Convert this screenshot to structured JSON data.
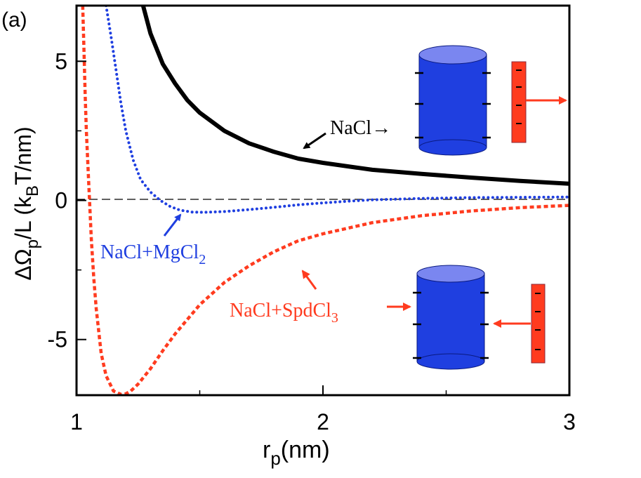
{
  "chart_data": {
    "type": "line",
    "panel_label": "(a)",
    "xlabel": "r",
    "xlabel_sub": "p",
    "xlabel_unit": "(nm)",
    "ylabel_prefix": "ΔΩ",
    "ylabel_sub": "p",
    "ylabel_mid": "/L (k",
    "ylabel_sub2": "B",
    "ylabel_suffix": "T/nm)",
    "xlim": [
      1,
      3
    ],
    "ylim": [
      -7,
      7
    ],
    "x_ticks": [
      {
        "value": 1,
        "label": "1"
      },
      {
        "value": 2,
        "label": "2"
      },
      {
        "value": 3,
        "label": "3"
      }
    ],
    "x_minor_ticks": [
      1.5,
      2.5
    ],
    "y_ticks": [
      {
        "value": 5,
        "label": "5"
      },
      {
        "value": 0,
        "label": "0"
      },
      {
        "value": -5,
        "label": "-5"
      }
    ],
    "y_minor_ticks": [
      2.5,
      -2.5
    ],
    "zero_line": true,
    "series": [
      {
        "name": "NaCl",
        "color": "#000000",
        "style": "solid",
        "x": [
          1.27,
          1.3,
          1.35,
          1.4,
          1.45,
          1.5,
          1.6,
          1.7,
          1.8,
          1.9,
          2.0,
          2.2,
          2.4,
          2.6,
          2.8,
          3.0
        ],
        "y": [
          7.0,
          6.0,
          4.9,
          4.2,
          3.6,
          3.15,
          2.5,
          2.05,
          1.75,
          1.5,
          1.35,
          1.1,
          0.95,
          0.82,
          0.7,
          0.6
        ]
      },
      {
        "name": "NaCl+MgCl2",
        "color": "#1f3fe0",
        "style": "dotted",
        "x": [
          1.12,
          1.14,
          1.16,
          1.18,
          1.2,
          1.23,
          1.26,
          1.3,
          1.34,
          1.38,
          1.42,
          1.47,
          1.52,
          1.6,
          1.7,
          1.8,
          1.9,
          2.0,
          2.1,
          2.2,
          2.4,
          2.6,
          2.8,
          3.0
        ],
        "y": [
          7.0,
          5.9,
          4.7,
          3.5,
          2.5,
          1.45,
          0.75,
          0.3,
          0.0,
          -0.22,
          -0.35,
          -0.42,
          -0.43,
          -0.4,
          -0.33,
          -0.25,
          -0.16,
          -0.09,
          -0.03,
          0.02,
          0.07,
          0.1,
          0.11,
          0.12
        ]
      },
      {
        "name": "NaCl+SpdCl3",
        "color": "#ff3b1f",
        "style": "dashed",
        "x": [
          1.025,
          1.03,
          1.035,
          1.04,
          1.05,
          1.06,
          1.07,
          1.08,
          1.1,
          1.12,
          1.15,
          1.18,
          1.2,
          1.22,
          1.25,
          1.3,
          1.35,
          1.4,
          1.5,
          1.6,
          1.7,
          1.8,
          1.9,
          2.0,
          2.2,
          2.4,
          2.6,
          2.8,
          3.0
        ],
        "y": [
          7.0,
          5.5,
          3.8,
          2.5,
          0.5,
          -1.4,
          -2.8,
          -3.9,
          -5.5,
          -6.3,
          -6.85,
          -6.97,
          -6.95,
          -6.85,
          -6.6,
          -6.05,
          -5.4,
          -4.8,
          -3.75,
          -2.95,
          -2.35,
          -1.85,
          -1.45,
          -1.2,
          -0.8,
          -0.55,
          -0.38,
          -0.26,
          -0.18
        ]
      }
    ],
    "annotations": [
      {
        "series": "NaCl",
        "text": "NaCl",
        "arrow": "→",
        "color": "#000000"
      },
      {
        "series": "NaCl+MgCl2",
        "text": "NaCl+MgCl",
        "sub": "2",
        "color": "#1f3fe0"
      },
      {
        "series": "NaCl+SpdCl3",
        "text": "NaCl+SpdCl",
        "sub": "3",
        "color": "#ff3b1f"
      }
    ],
    "insets": {
      "cylinder_color": "#1f3fe0",
      "rod_color": "#ff3b1f",
      "top_arrow_direction": "away",
      "bottom_arrow_direction": "toward"
    }
  }
}
